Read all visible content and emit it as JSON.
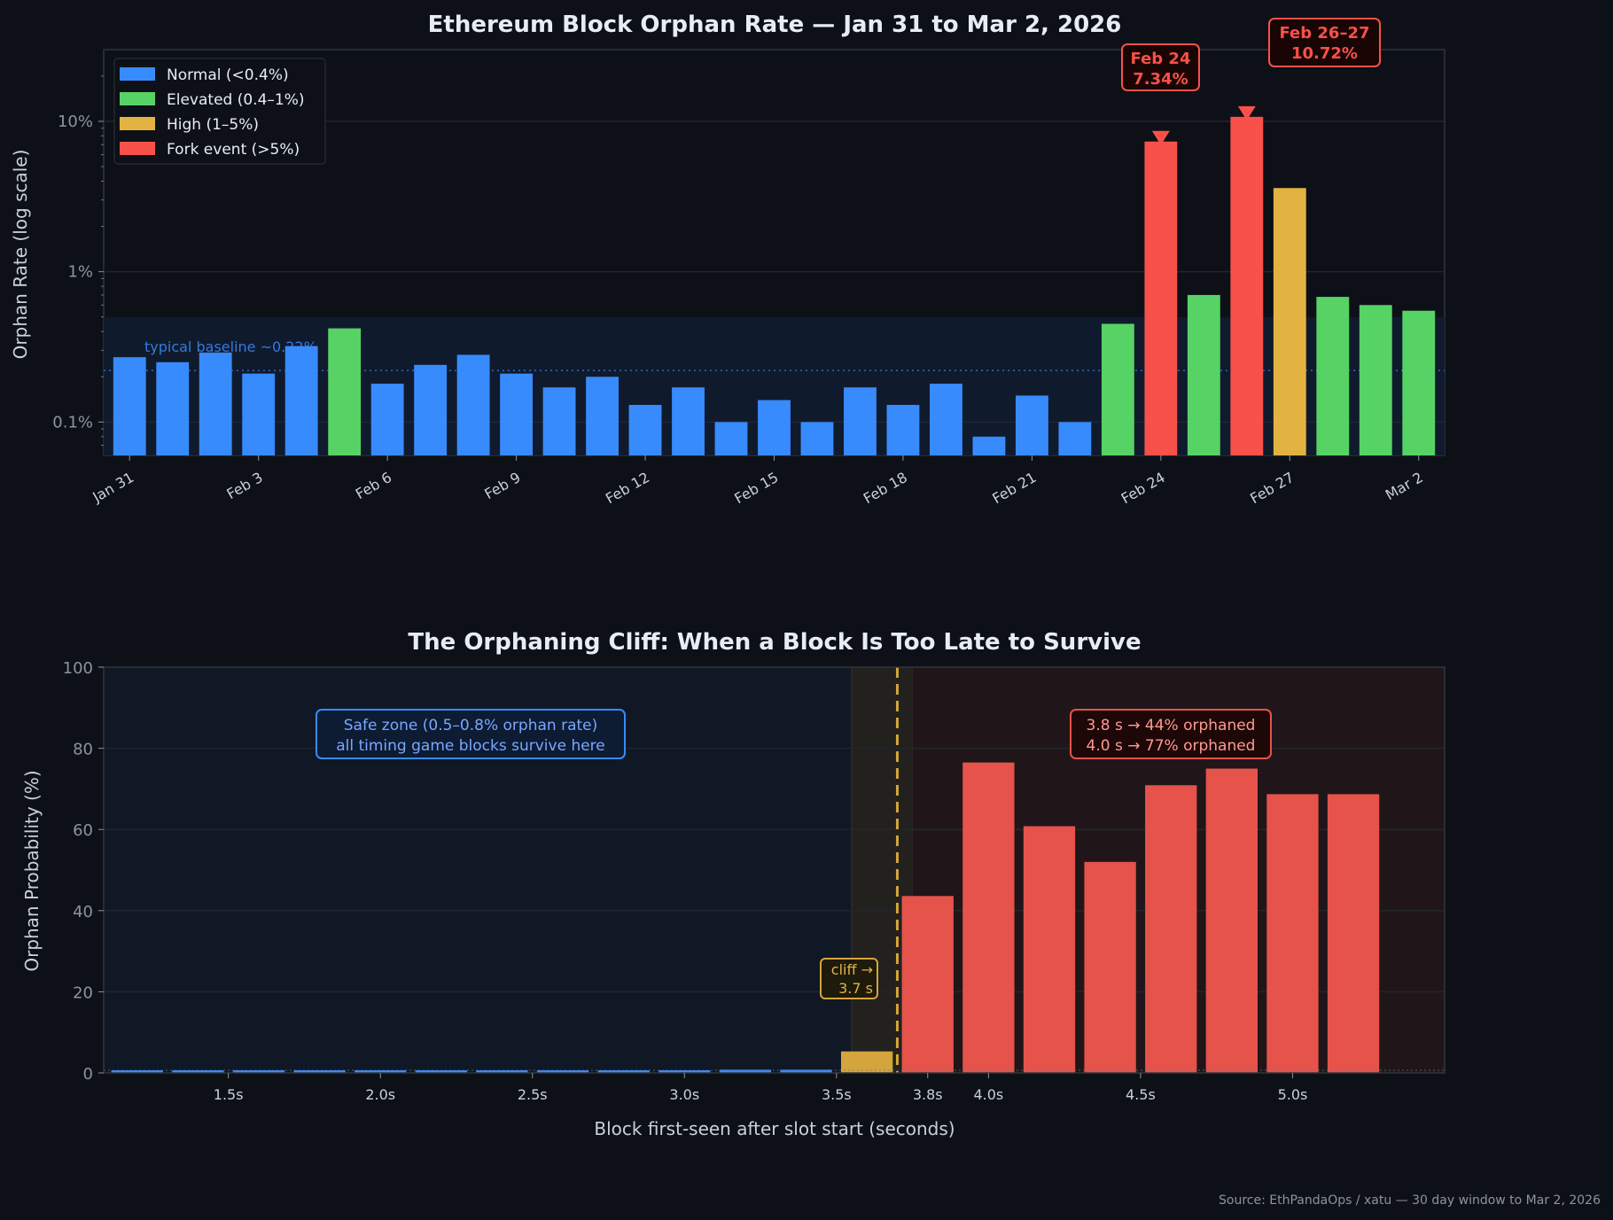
{
  "colors": {
    "normal": "#388bfd",
    "elevated": "#56d364",
    "high": "#e3b341",
    "fork": "#f85149",
    "bottom_red": "#e5534b",
    "bottom_yellow": "#d4a53c",
    "background": "#0d1117"
  },
  "chart_data": [
    {
      "type": "bar",
      "title": "Ethereum Block Orphan Rate — Jan 31 to Mar 2, 2026",
      "ylabel": "Orphan Rate  (log scale)",
      "xlabel": "",
      "yscale": "log",
      "ylim": [
        0.06,
        30
      ],
      "yticks": [
        {
          "v": 0.1,
          "label": "0.1%"
        },
        {
          "v": 1,
          "label": "1%"
        },
        {
          "v": 10,
          "label": "10%"
        }
      ],
      "grid": true,
      "legend_position": "top-left",
      "legend": [
        {
          "label": "Normal (<0.4%)",
          "cat": "normal"
        },
        {
          "label": "Elevated (0.4–1%)",
          "cat": "elevated"
        },
        {
          "label": "High (1–5%)",
          "cat": "high"
        },
        {
          "label": "Fork event (>5%)",
          "cat": "fork"
        }
      ],
      "categories": [
        "Jan 31",
        "Feb 1",
        "Feb 2",
        "Feb 3",
        "Feb 4",
        "Feb 5",
        "Feb 6",
        "Feb 7",
        "Feb 8",
        "Feb 9",
        "Feb 10",
        "Feb 11",
        "Feb 12",
        "Feb 13",
        "Feb 14",
        "Feb 15",
        "Feb 16",
        "Feb 17",
        "Feb 18",
        "Feb 19",
        "Feb 20",
        "Feb 21",
        "Feb 22",
        "Feb 23",
        "Feb 24",
        "Feb 25",
        "Feb 26",
        "Feb 27",
        "Feb 28",
        "Mar 1",
        "Mar 2"
      ],
      "values": [
        0.27,
        0.25,
        0.29,
        0.21,
        0.32,
        0.42,
        0.18,
        0.24,
        0.28,
        0.21,
        0.17,
        0.2,
        0.13,
        0.17,
        0.1,
        0.14,
        0.1,
        0.17,
        0.13,
        0.18,
        0.08,
        0.15,
        0.1,
        0.45,
        7.34,
        0.7,
        10.72,
        3.6,
        0.68,
        0.6,
        0.55
      ],
      "xtick_labels": [
        "Jan 31",
        "Feb 3",
        "Feb 6",
        "Feb 9",
        "Feb 12",
        "Feb 15",
        "Feb 18",
        "Feb 21",
        "Feb 24",
        "Feb 27",
        "Mar 2"
      ],
      "baseline": {
        "value": 0.22,
        "label": "typical baseline ~0.22%"
      },
      "normal_band_max": 0.5,
      "annotations": [
        {
          "index": 24,
          "line1": "Feb 24",
          "line2": "7.34%"
        },
        {
          "index": 26,
          "line1": "Feb 26–27",
          "line2": "10.72%"
        }
      ]
    },
    {
      "type": "bar",
      "title": "The Orphaning Cliff: When a Block Is Too Late to Survive",
      "xlabel": "Block first-seen after slot start (seconds)",
      "ylabel": "Orphan Probability (%)",
      "xlim": [
        1.09,
        5.5
      ],
      "ylim": [
        0,
        100
      ],
      "yticks": [
        0,
        20,
        40,
        60,
        80,
        100
      ],
      "xticks": [
        {
          "v": 1.5,
          "label": "1.5s"
        },
        {
          "v": 2.0,
          "label": "2.0s"
        },
        {
          "v": 2.5,
          "label": "2.5s"
        },
        {
          "v": 3.0,
          "label": "3.0s"
        },
        {
          "v": 3.5,
          "label": "3.5s"
        },
        {
          "v": 3.8,
          "label": "3.8s"
        },
        {
          "v": 4.0,
          "label": "4.0s"
        },
        {
          "v": 4.5,
          "label": "4.5s"
        },
        {
          "v": 5.0,
          "label": "5.0s"
        }
      ],
      "grid": true,
      "bar_width": 0.17,
      "x": [
        1.2,
        1.4,
        1.6,
        1.8,
        2.0,
        2.2,
        2.4,
        2.6,
        2.8,
        3.0,
        3.2,
        3.4,
        3.6,
        3.8,
        4.0,
        4.2,
        4.4,
        4.6,
        4.8,
        5.0,
        5.2
      ],
      "values": [
        0.6,
        0.6,
        0.6,
        0.6,
        0.6,
        0.6,
        0.6,
        0.6,
        0.6,
        0.6,
        0.8,
        0.8,
        5.3,
        43.6,
        76.5,
        60.8,
        52.0,
        70.9,
        75.0,
        68.7,
        68.7
      ],
      "zones": {
        "safe_end": 3.55,
        "cliff_end": 3.75,
        "cliff": 3.7
      },
      "annotations": {
        "safe": [
          "Safe zone  (0.5–0.8% orphan rate)",
          "all timing game blocks survive here"
        ],
        "cliff": [
          "cliff →",
          "3.7 s"
        ],
        "red": [
          "3.8 s → 44% orphaned",
          "4.0 s → 77% orphaned"
        ]
      }
    }
  ],
  "source": "Source: EthPandaOps / xatu — 30 day window to Mar 2, 2026"
}
